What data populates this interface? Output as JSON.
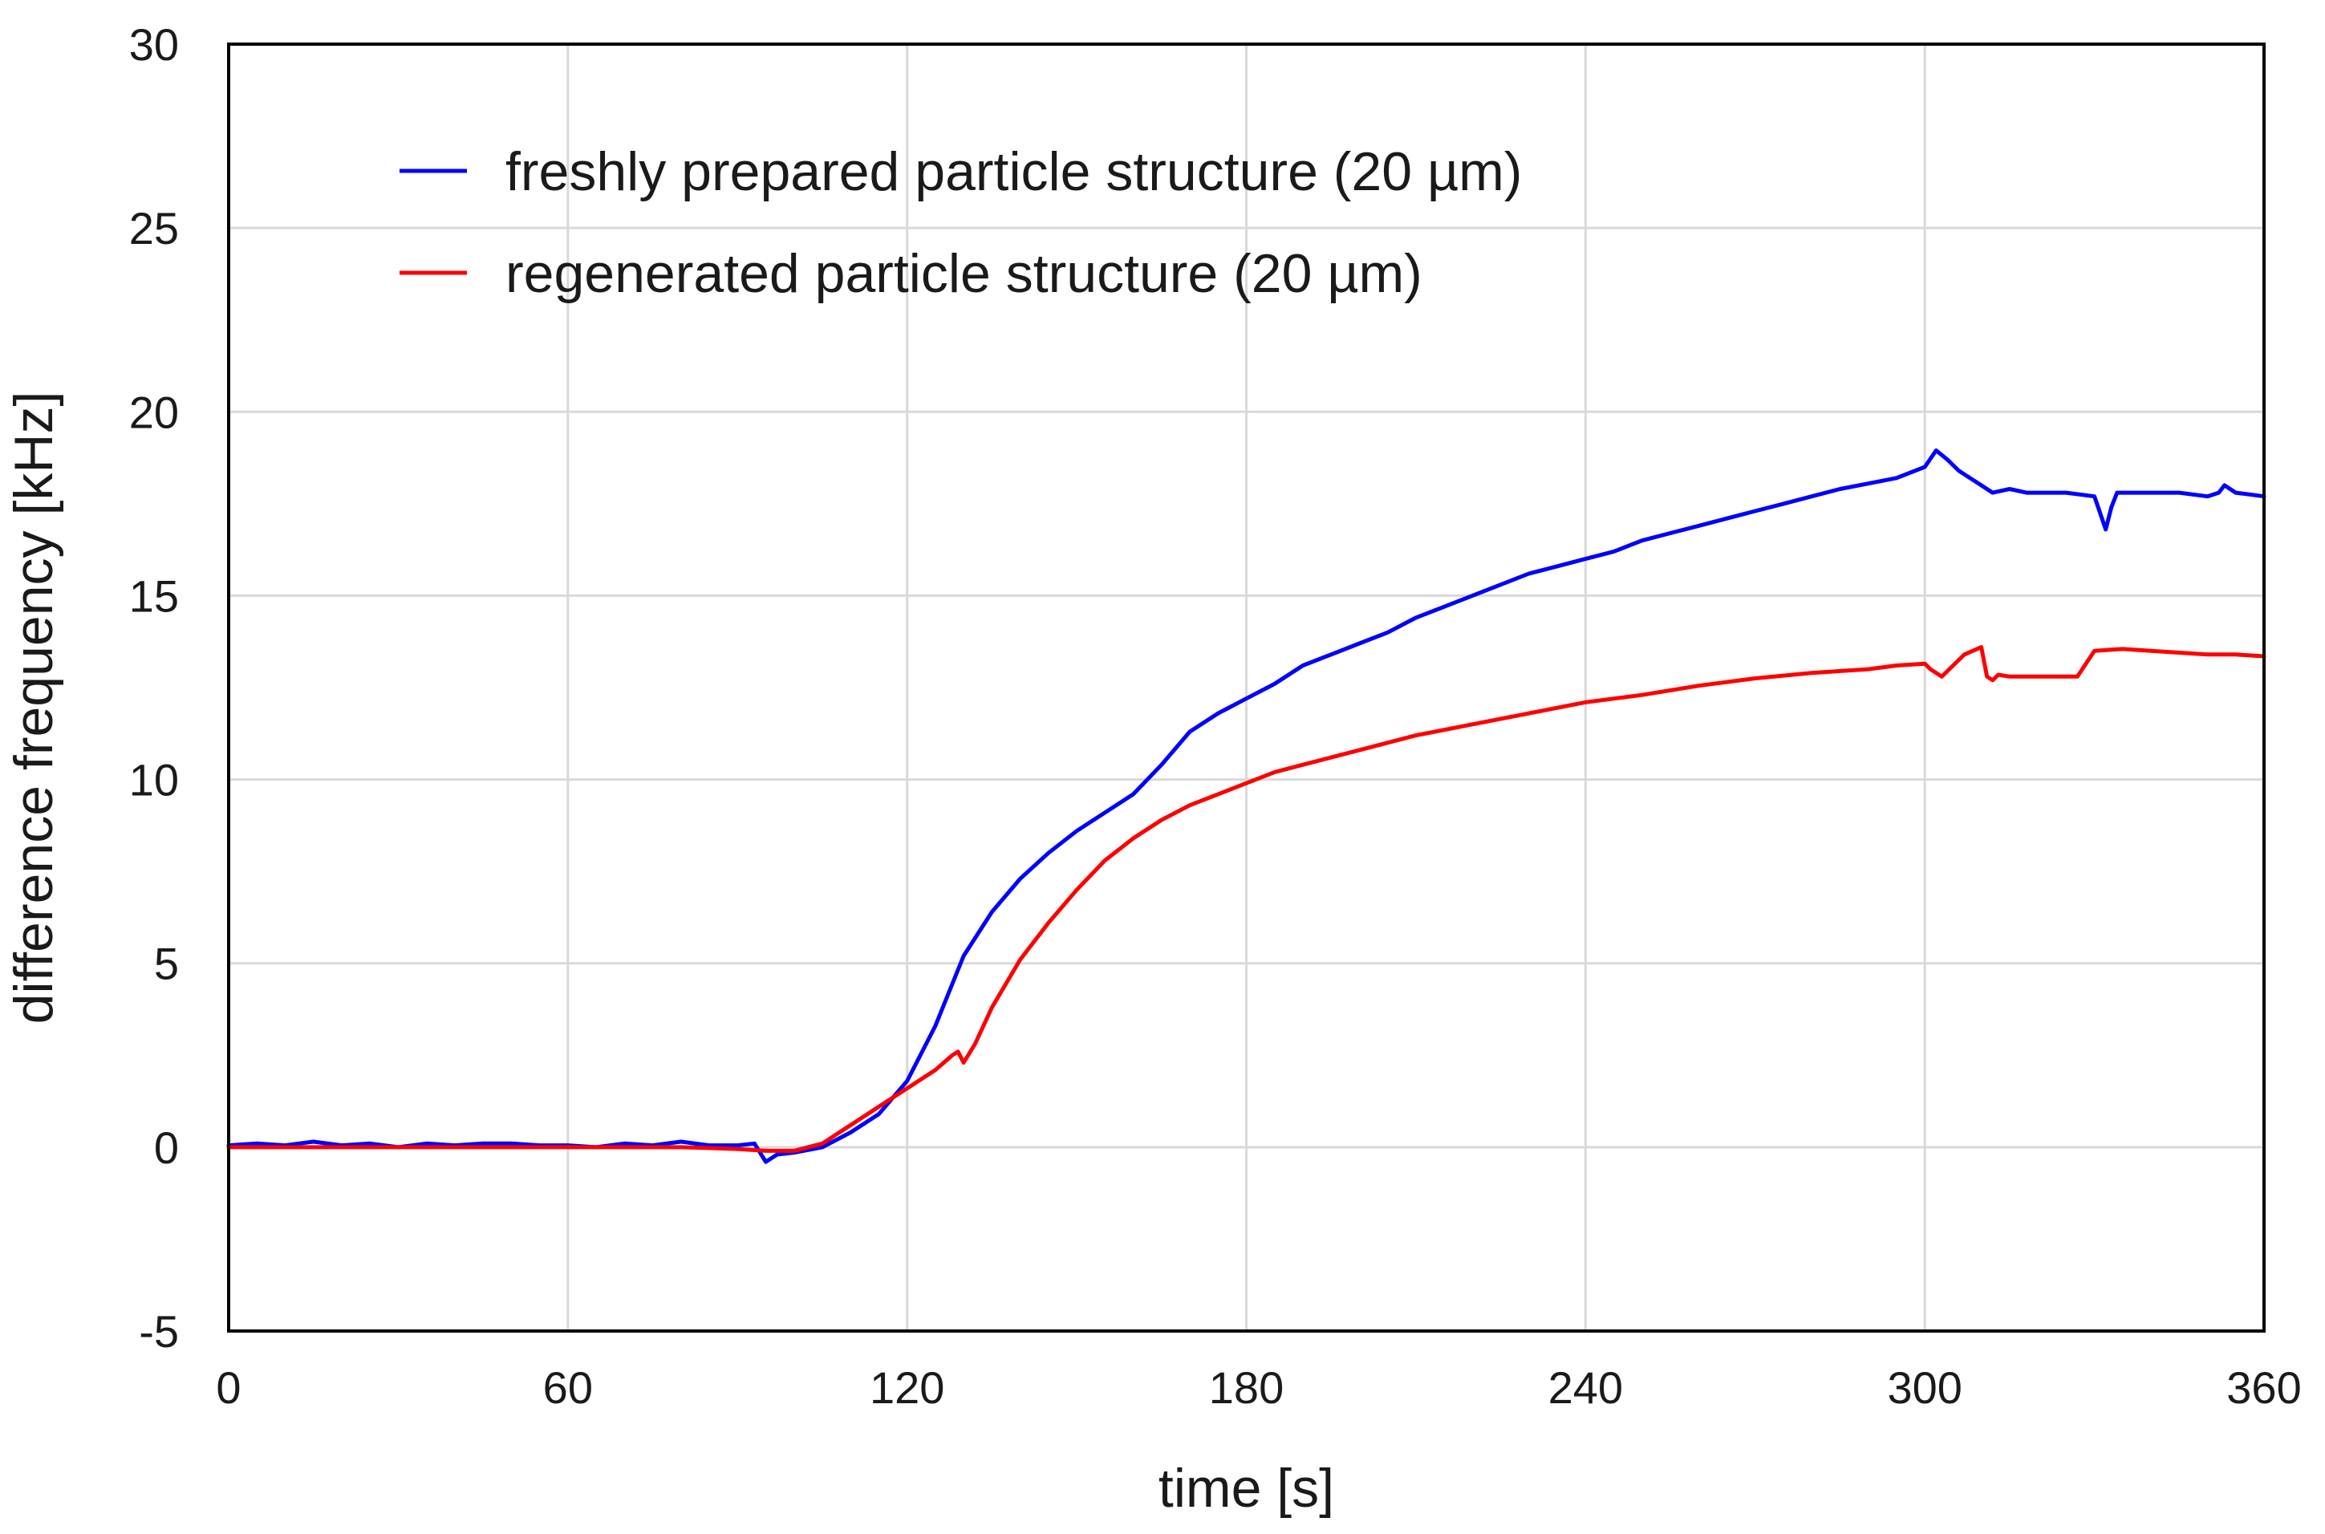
{
  "chart_data": {
    "type": "line",
    "title": "",
    "xlabel": "time [s]",
    "ylabel": "difference frequency [kHz]",
    "xlim": [
      0,
      360
    ],
    "ylim": [
      -5,
      30
    ],
    "x_ticks": [
      0,
      60,
      120,
      180,
      240,
      300,
      360
    ],
    "x_tick_labels": [
      "0",
      "60",
      "120",
      "180",
      "240",
      "300",
      "360"
    ],
    "y_ticks": [
      -5,
      0,
      5,
      10,
      15,
      20,
      25,
      30
    ],
    "y_tick_labels": [
      "-5",
      "0",
      "5",
      "10",
      "15",
      "20",
      "25",
      "30"
    ],
    "grid": true,
    "legend_position": "top-left",
    "series": [
      {
        "name": "freshly prepared particle structure (20 µm)",
        "color": "#0000ff",
        "x": [
          0,
          5,
          10,
          15,
          20,
          25,
          30,
          35,
          40,
          45,
          50,
          55,
          60,
          65,
          70,
          75,
          80,
          85,
          90,
          93,
          95,
          97,
          100,
          105,
          110,
          115,
          120,
          125,
          130,
          135,
          140,
          145,
          150,
          155,
          160,
          165,
          170,
          175,
          180,
          185,
          190,
          195,
          200,
          205,
          210,
          215,
          220,
          225,
          230,
          235,
          240,
          245,
          250,
          255,
          260,
          265,
          270,
          275,
          280,
          285,
          290,
          295,
          300,
          302,
          304,
          306,
          308,
          310,
          312,
          315,
          318,
          320,
          325,
          330,
          332,
          333,
          334,
          336,
          340,
          345,
          350,
          352,
          353,
          355,
          360
        ],
        "y": [
          0.05,
          0.1,
          0.05,
          0.15,
          0.05,
          0.1,
          0.0,
          0.1,
          0.05,
          0.1,
          0.1,
          0.05,
          0.05,
          0.0,
          0.1,
          0.05,
          0.15,
          0.05,
          0.05,
          0.1,
          -0.4,
          -0.2,
          -0.15,
          0.0,
          0.4,
          0.9,
          1.8,
          3.3,
          5.2,
          6.4,
          7.3,
          8.0,
          8.6,
          9.1,
          9.6,
          10.4,
          11.3,
          11.8,
          12.2,
          12.6,
          13.1,
          13.4,
          13.7,
          14.0,
          14.4,
          14.7,
          15.0,
          15.3,
          15.6,
          15.8,
          16.0,
          16.2,
          16.5,
          16.7,
          16.9,
          17.1,
          17.3,
          17.5,
          17.7,
          17.9,
          18.05,
          18.2,
          18.5,
          18.95,
          18.7,
          18.4,
          18.2,
          18.0,
          17.8,
          17.9,
          17.8,
          17.8,
          17.8,
          17.7,
          16.8,
          17.4,
          17.8,
          17.8,
          17.8,
          17.8,
          17.7,
          17.8,
          18.0,
          17.8,
          17.7
        ]
      },
      {
        "name": "regenerated particle structure (20 µm)",
        "color": "#ff0000",
        "x": [
          0,
          10,
          20,
          30,
          40,
          50,
          60,
          70,
          80,
          90,
          95,
          100,
          105,
          110,
          115,
          120,
          125,
          128,
          129,
          130,
          132,
          135,
          140,
          145,
          150,
          155,
          160,
          165,
          170,
          175,
          180,
          185,
          190,
          195,
          200,
          210,
          220,
          230,
          240,
          250,
          260,
          270,
          280,
          290,
          295,
          300,
          301,
          303,
          305,
          307,
          310,
          311,
          312,
          313,
          315,
          320,
          325,
          327,
          330,
          335,
          340,
          345,
          350,
          355,
          360
        ],
        "y": [
          0.0,
          0.0,
          0.0,
          0.0,
          0.0,
          0.0,
          0.0,
          0.0,
          0.0,
          -0.05,
          -0.1,
          -0.1,
          0.1,
          0.6,
          1.1,
          1.6,
          2.1,
          2.5,
          2.6,
          2.3,
          2.8,
          3.8,
          5.1,
          6.1,
          7.0,
          7.8,
          8.4,
          8.9,
          9.3,
          9.6,
          9.9,
          10.2,
          10.4,
          10.6,
          10.8,
          11.2,
          11.5,
          11.8,
          12.1,
          12.3,
          12.55,
          12.75,
          12.9,
          13.0,
          13.1,
          13.15,
          13.0,
          12.8,
          13.1,
          13.4,
          13.6,
          12.8,
          12.7,
          12.85,
          12.8,
          12.8,
          12.8,
          12.8,
          13.5,
          13.55,
          13.5,
          13.45,
          13.4,
          13.4,
          13.35
        ]
      }
    ]
  }
}
